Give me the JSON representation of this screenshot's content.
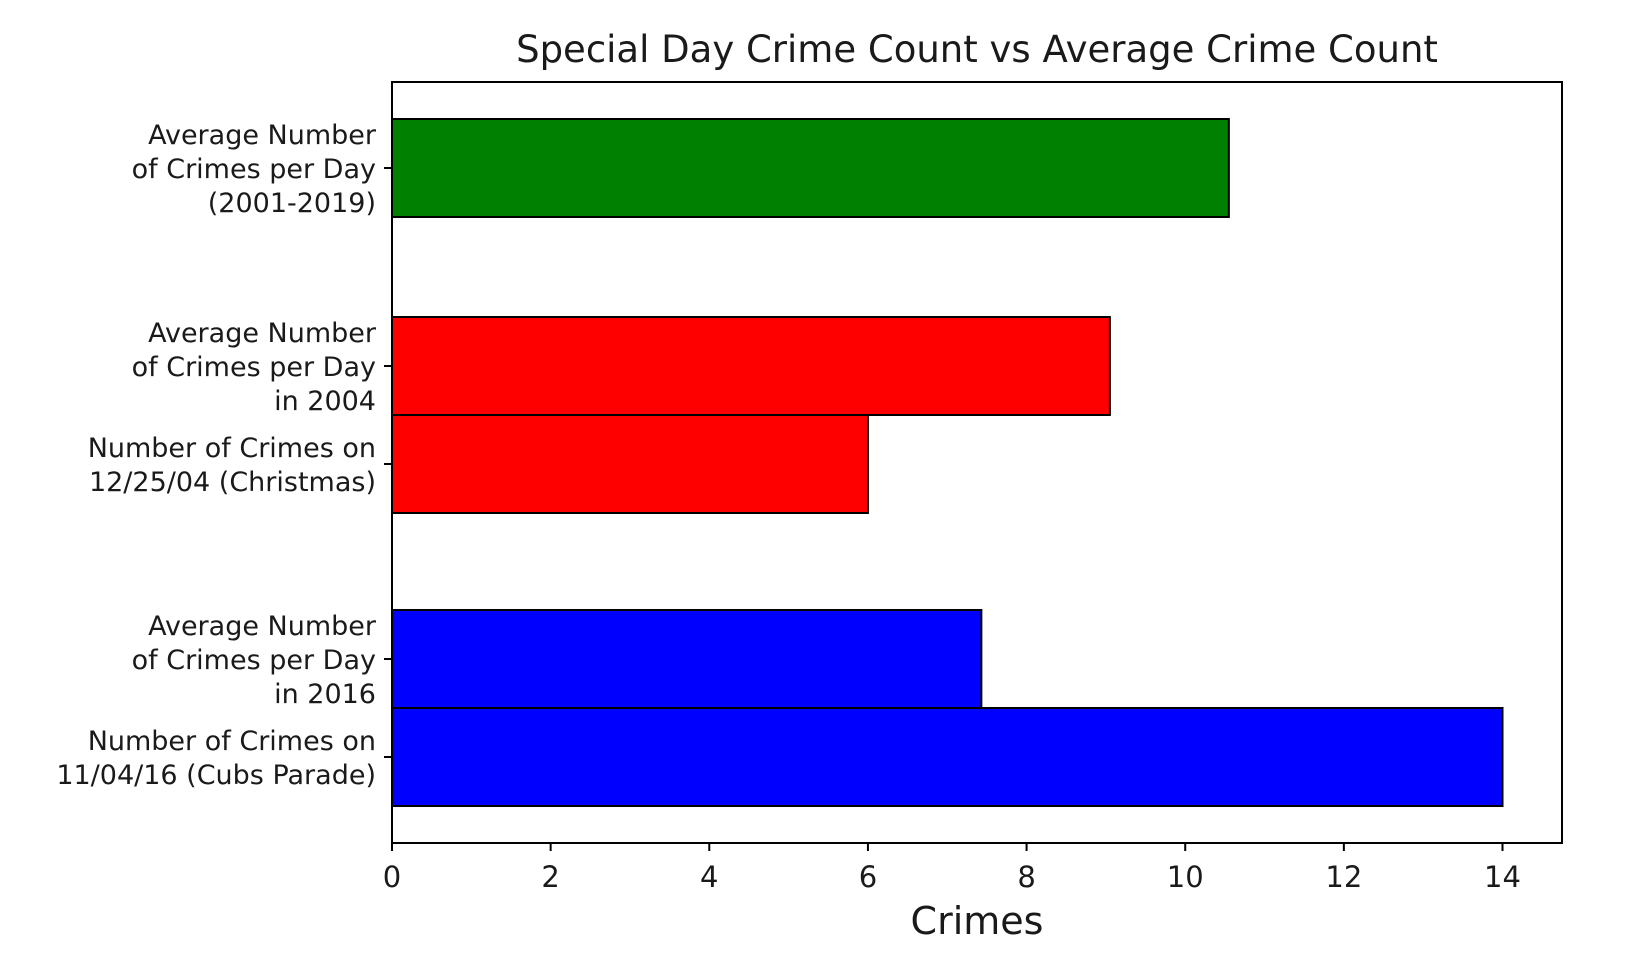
{
  "chart_data": {
    "type": "bar",
    "orientation": "horizontal",
    "title": "Special Day Crime Count vs Average Crime Count",
    "xlabel": "Crimes",
    "ylabel": "",
    "xlim": [
      0,
      14.75
    ],
    "xticks": [
      0,
      2,
      4,
      6,
      8,
      10,
      12,
      14
    ],
    "grid": false,
    "bar_edge_color": "#000000",
    "bars": [
      {
        "label": [
          "Average Number",
          "of Crimes per Day",
          "(2001-2019)"
        ],
        "value": 10.55,
        "color": "#008000"
      },
      {
        "label": [
          "Average Number",
          "of Crimes per Day",
          "in 2004"
        ],
        "value": 9.05,
        "color": "#ff0000"
      },
      {
        "label": [
          "Number of Crimes on",
          "12/25/04 (Christmas)"
        ],
        "value": 6,
        "color": "#ff0000"
      },
      {
        "label": [
          "Average Number",
          "of Crimes per Day",
          "in 2016"
        ],
        "value": 7.43,
        "color": "#0000ff"
      },
      {
        "label": [
          "Number of Crimes on",
          "11/04/16 (Cubs Parade)"
        ],
        "value": 14,
        "color": "#0000ff"
      }
    ]
  }
}
